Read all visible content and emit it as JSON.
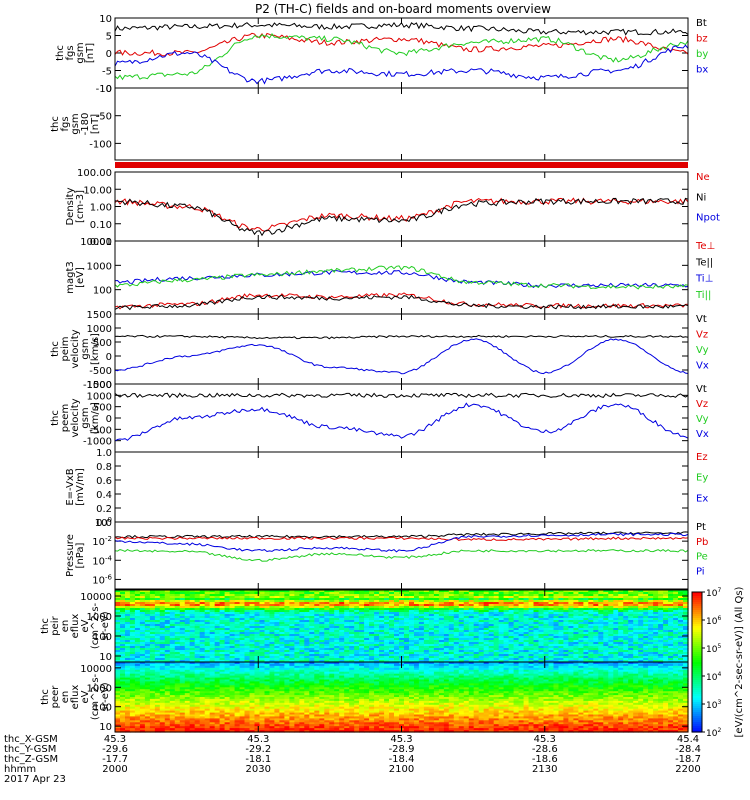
{
  "title": "P2 (TH-C) fields and on-board moments overview",
  "footer": {
    "labels": [
      "thc_X-GSM",
      "thc_Y-GSM",
      "thc_Z-GSM",
      "hhmm",
      "2017 Apr 23"
    ],
    "rows": [
      [
        "45.3",
        "45.3",
        "45.3",
        "45.3",
        "45.4"
      ],
      [
        "-29.6",
        "-29.2",
        "-28.9",
        "-28.6",
        "-28.4"
      ],
      [
        "-17.7",
        "-18.1",
        "-18.4",
        "-18.6",
        "-18.7"
      ],
      [
        "2000",
        "2030",
        "2100",
        "2130",
        "2200"
      ]
    ]
  },
  "colorbar_label": "[eV/(cm^2-sec-sr-eV)] (All Qs)",
  "colors": {
    "black": "#000000",
    "red": "#e00000",
    "green": "#22cc22",
    "blue": "#0000e0"
  },
  "chart_data": [
    {
      "type": "line",
      "ylabel": [
        "thc",
        "fgs",
        "gsm",
        "[nT]"
      ],
      "ylim": [
        -10,
        10
      ],
      "yticks": [
        "10",
        "5",
        "0",
        "-5",
        "-10"
      ],
      "legend": [
        {
          "name": "Bt",
          "color": "black"
        },
        {
          "name": "bz",
          "color": "red"
        },
        {
          "name": "by",
          "color": "green"
        },
        {
          "name": "bx",
          "color": "blue"
        }
      ],
      "x": [
        2000,
        2015,
        2030,
        2045,
        2100,
        2115,
        2130,
        2145,
        2200
      ],
      "series": [
        {
          "name": "Bt",
          "values": [
            7,
            7.5,
            8,
            7.5,
            8,
            7,
            6,
            6,
            6
          ]
        },
        {
          "name": "bz",
          "values": [
            0,
            0,
            5,
            3,
            4,
            1,
            2,
            4,
            0
          ]
        },
        {
          "name": "by",
          "values": [
            -7,
            -6,
            5,
            4,
            0,
            3,
            4,
            -2,
            3
          ]
        },
        {
          "name": "bx",
          "values": [
            -3,
            0,
            -8,
            -5,
            -6,
            -5,
            -7,
            -5,
            2
          ]
        }
      ]
    },
    {
      "type": "line",
      "ylabel": [
        "thc",
        "fgs",
        "gsm",
        "-180",
        "[nT]"
      ],
      "ylim": [
        -130,
        0
      ],
      "yticks": [
        "0",
        "-50",
        "-100"
      ],
      "legend": []
    },
    {
      "type": "line",
      "ylabel": [
        "Density",
        "[cm-3]"
      ],
      "scale": "log",
      "ylim": [
        0.01,
        100
      ],
      "yticks": [
        "100.00",
        "10.00",
        "1.00",
        "0.10",
        "0.01"
      ],
      "legend": [
        {
          "name": "Ne",
          "color": "red"
        },
        {
          "name": "Ni",
          "color": "black"
        },
        {
          "name": "Npot",
          "color": "blue"
        }
      ],
      "x": [
        2000,
        2015,
        2030,
        2045,
        2100,
        2115,
        2130,
        2145,
        2200
      ],
      "series": [
        {
          "name": "Ne",
          "values": [
            2,
            1,
            0.05,
            0.3,
            0.2,
            2,
            2,
            2,
            2
          ]
        },
        {
          "name": "Ni",
          "values": [
            2,
            1,
            0.03,
            0.2,
            0.15,
            1.5,
            2,
            2,
            2
          ]
        }
      ]
    },
    {
      "type": "line",
      "ylabel": [
        "magt3",
        "[eV]"
      ],
      "scale": "log",
      "ylim": [
        10,
        10000
      ],
      "yticks": [
        "10000",
        "1000",
        "100"
      ],
      "legend": [
        {
          "name": "Te⊥",
          "color": "red"
        },
        {
          "name": "Te||",
          "color": "black"
        },
        {
          "name": "Ti⊥",
          "color": "blue"
        },
        {
          "name": "Ti||",
          "color": "green"
        }
      ],
      "x": [
        2000,
        2015,
        2030,
        2045,
        2100,
        2115,
        2130,
        2145,
        2200
      ],
      "series": [
        {
          "name": "Ti⊥",
          "values": [
            200,
            300,
            400,
            500,
            500,
            200,
            150,
            150,
            150
          ]
        },
        {
          "name": "Ti||",
          "values": [
            150,
            250,
            400,
            600,
            800,
            200,
            150,
            130,
            130
          ]
        },
        {
          "name": "Te⊥",
          "values": [
            20,
            25,
            60,
            50,
            60,
            25,
            22,
            22,
            22
          ]
        },
        {
          "name": "Te||",
          "values": [
            18,
            22,
            50,
            45,
            50,
            22,
            20,
            20,
            20
          ]
        }
      ]
    },
    {
      "type": "line",
      "ylabel": [
        "thc",
        "peim",
        "velocity",
        "gsm",
        "[km/s]"
      ],
      "ylim": [
        -1000,
        1500
      ],
      "yticks": [
        "1500",
        "1000",
        "500",
        "0",
        "-500",
        "-1000"
      ],
      "legend": [
        {
          "name": "Vt",
          "color": "black"
        },
        {
          "name": "Vz",
          "color": "red"
        },
        {
          "name": "Vy",
          "color": "green"
        },
        {
          "name": "Vx",
          "color": "blue"
        }
      ],
      "x": [
        2000,
        2015,
        2030,
        2045,
        2100,
        2115,
        2130,
        2145,
        2200
      ],
      "series": [
        {
          "name": "Vt",
          "values": [
            700,
            700,
            650,
            650,
            700,
            700,
            700,
            700,
            700
          ]
        },
        {
          "name": "Vx",
          "values": [
            -500,
            0,
            400,
            -400,
            -600,
            600,
            -600,
            600,
            -600
          ]
        }
      ]
    },
    {
      "type": "line",
      "ylabel": [
        "thc",
        "peem",
        "velocity",
        "gsm",
        "[km/s]"
      ],
      "ylim": [
        -1500,
        1500
      ],
      "yticks": [
        "1500",
        "1000",
        "500",
        "0",
        "-500",
        "-1000"
      ],
      "legend": [
        {
          "name": "Vt",
          "color": "black"
        },
        {
          "name": "Vz",
          "color": "red"
        },
        {
          "name": "Vy",
          "color": "green"
        },
        {
          "name": "Vx",
          "color": "blue"
        }
      ],
      "x": [
        2000,
        2015,
        2030,
        2045,
        2100,
        2115,
        2130,
        2145,
        2200
      ],
      "series": [
        {
          "name": "Vt",
          "values": [
            1000,
            1000,
            1000,
            1000,
            1000,
            1000,
            1000,
            1000,
            1000
          ]
        },
        {
          "name": "Vx",
          "values": [
            -1000,
            0,
            400,
            -400,
            -800,
            600,
            -600,
            600,
            -800
          ]
        }
      ]
    },
    {
      "type": "line",
      "ylabel": [
        "E=-VxB",
        "[mV/m]"
      ],
      "ylim": [
        0,
        1
      ],
      "yticks": [
        "1.0",
        "0.8",
        "0.6",
        "0.4",
        "0.2",
        "0.0"
      ],
      "legend": [
        {
          "name": "Ez",
          "color": "red"
        },
        {
          "name": "Ey",
          "color": "green"
        },
        {
          "name": "Ex",
          "color": "blue"
        }
      ]
    },
    {
      "type": "line",
      "ylabel": [
        "Pressure",
        "[nPa]"
      ],
      "scale": "log",
      "ylim": [
        1e-07,
        1
      ],
      "yticks": [
        "10^0",
        "10^-2",
        "10^-4",
        "10^-6"
      ],
      "legend": [
        {
          "name": "Pt",
          "color": "black"
        },
        {
          "name": "Pb",
          "color": "red"
        },
        {
          "name": "Pe",
          "color": "green"
        },
        {
          "name": "Pi",
          "color": "blue"
        }
      ],
      "x": [
        2000,
        2015,
        2030,
        2045,
        2100,
        2115,
        2130,
        2145,
        2200
      ],
      "series": [
        {
          "name": "Pt",
          "values": [
            0.03,
            0.03,
            0.03,
            0.03,
            0.03,
            0.05,
            0.06,
            0.07,
            0.07
          ]
        },
        {
          "name": "Pb",
          "values": [
            0.02,
            0.02,
            0.02,
            0.02,
            0.02,
            0.015,
            0.015,
            0.02,
            0.02
          ]
        },
        {
          "name": "Pi",
          "values": [
            0.01,
            0.005,
            0.001,
            0.002,
            0.001,
            0.03,
            0.04,
            0.05,
            0.05
          ]
        },
        {
          "name": "Pe",
          "values": [
            0.001,
            0.0008,
            0.0001,
            0.0005,
            0.0002,
            0.001,
            0.001,
            0.001,
            0.001
          ]
        }
      ]
    },
    {
      "type": "heatmap",
      "ylabel": [
        "thc",
        "peir",
        "en",
        "eflux",
        "eV",
        "(cm^2-s-",
        "sr-eV)"
      ],
      "scale": "log",
      "ylim": [
        5,
        20000
      ],
      "yticks": [
        "10000",
        "1000",
        "100",
        "10"
      ]
    },
    {
      "type": "heatmap",
      "ylabel": [
        "thc",
        "peer",
        "en",
        "eflux",
        "eV",
        "(cm^2-s-",
        "sr-eV)"
      ],
      "scale": "log",
      "ylim": [
        5,
        20000
      ],
      "yticks": [
        "10000",
        "1000",
        "100",
        "10"
      ]
    },
    {
      "type": "colorbar",
      "scale": "log",
      "range": [
        100,
        10000000
      ],
      "ticks": [
        "10^7",
        "10^6",
        "10^5",
        "10^4",
        "10^3",
        "10^2"
      ]
    }
  ]
}
